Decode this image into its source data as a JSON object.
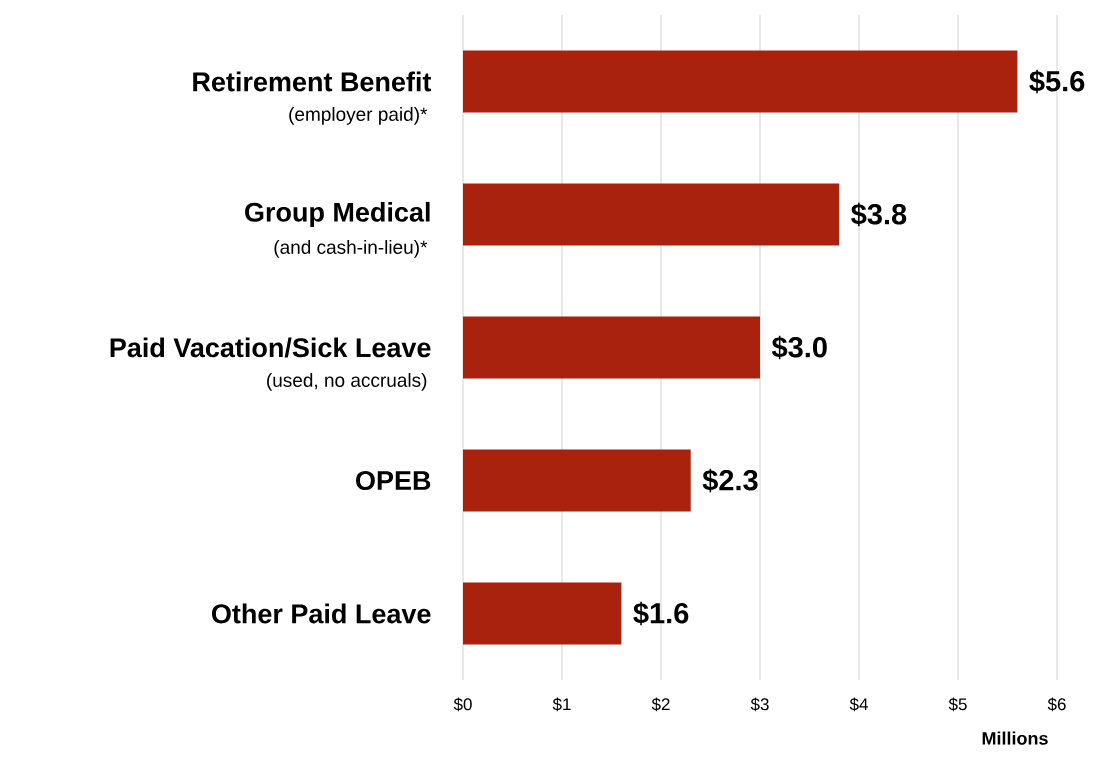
{
  "chart_data": {
    "type": "bar",
    "orientation": "horizontal",
    "categories": [
      "Retirement Benefit",
      "Group Medical",
      "Paid Vacation/Sick Leave",
      "OPEB",
      "Other Paid Leave"
    ],
    "values": [
      5.6,
      3.8,
      3.0,
      2.3,
      1.6
    ],
    "value_labels": [
      "$5.6",
      "$3.8",
      "$3.0",
      "$2.3",
      "$1.6"
    ],
    "color": "#a8220e",
    "xlabel": "Millions",
    "xlim": [
      0,
      6
    ],
    "xticks": [
      {
        "value": 0,
        "label": "$0"
      },
      {
        "value": 1,
        "label": "$1"
      },
      {
        "value": 2,
        "label": "$2"
      },
      {
        "value": 3,
        "label": "$3"
      },
      {
        "value": 4,
        "label": "$4"
      },
      {
        "value": 5,
        "label": "$5"
      },
      {
        "value": 6,
        "label": "$6"
      }
    ],
    "grid": "x",
    "annotations": [
      "(employer paid)*",
      "(and cash-in-lieu)*",
      "(used, no accruals)"
    ]
  }
}
